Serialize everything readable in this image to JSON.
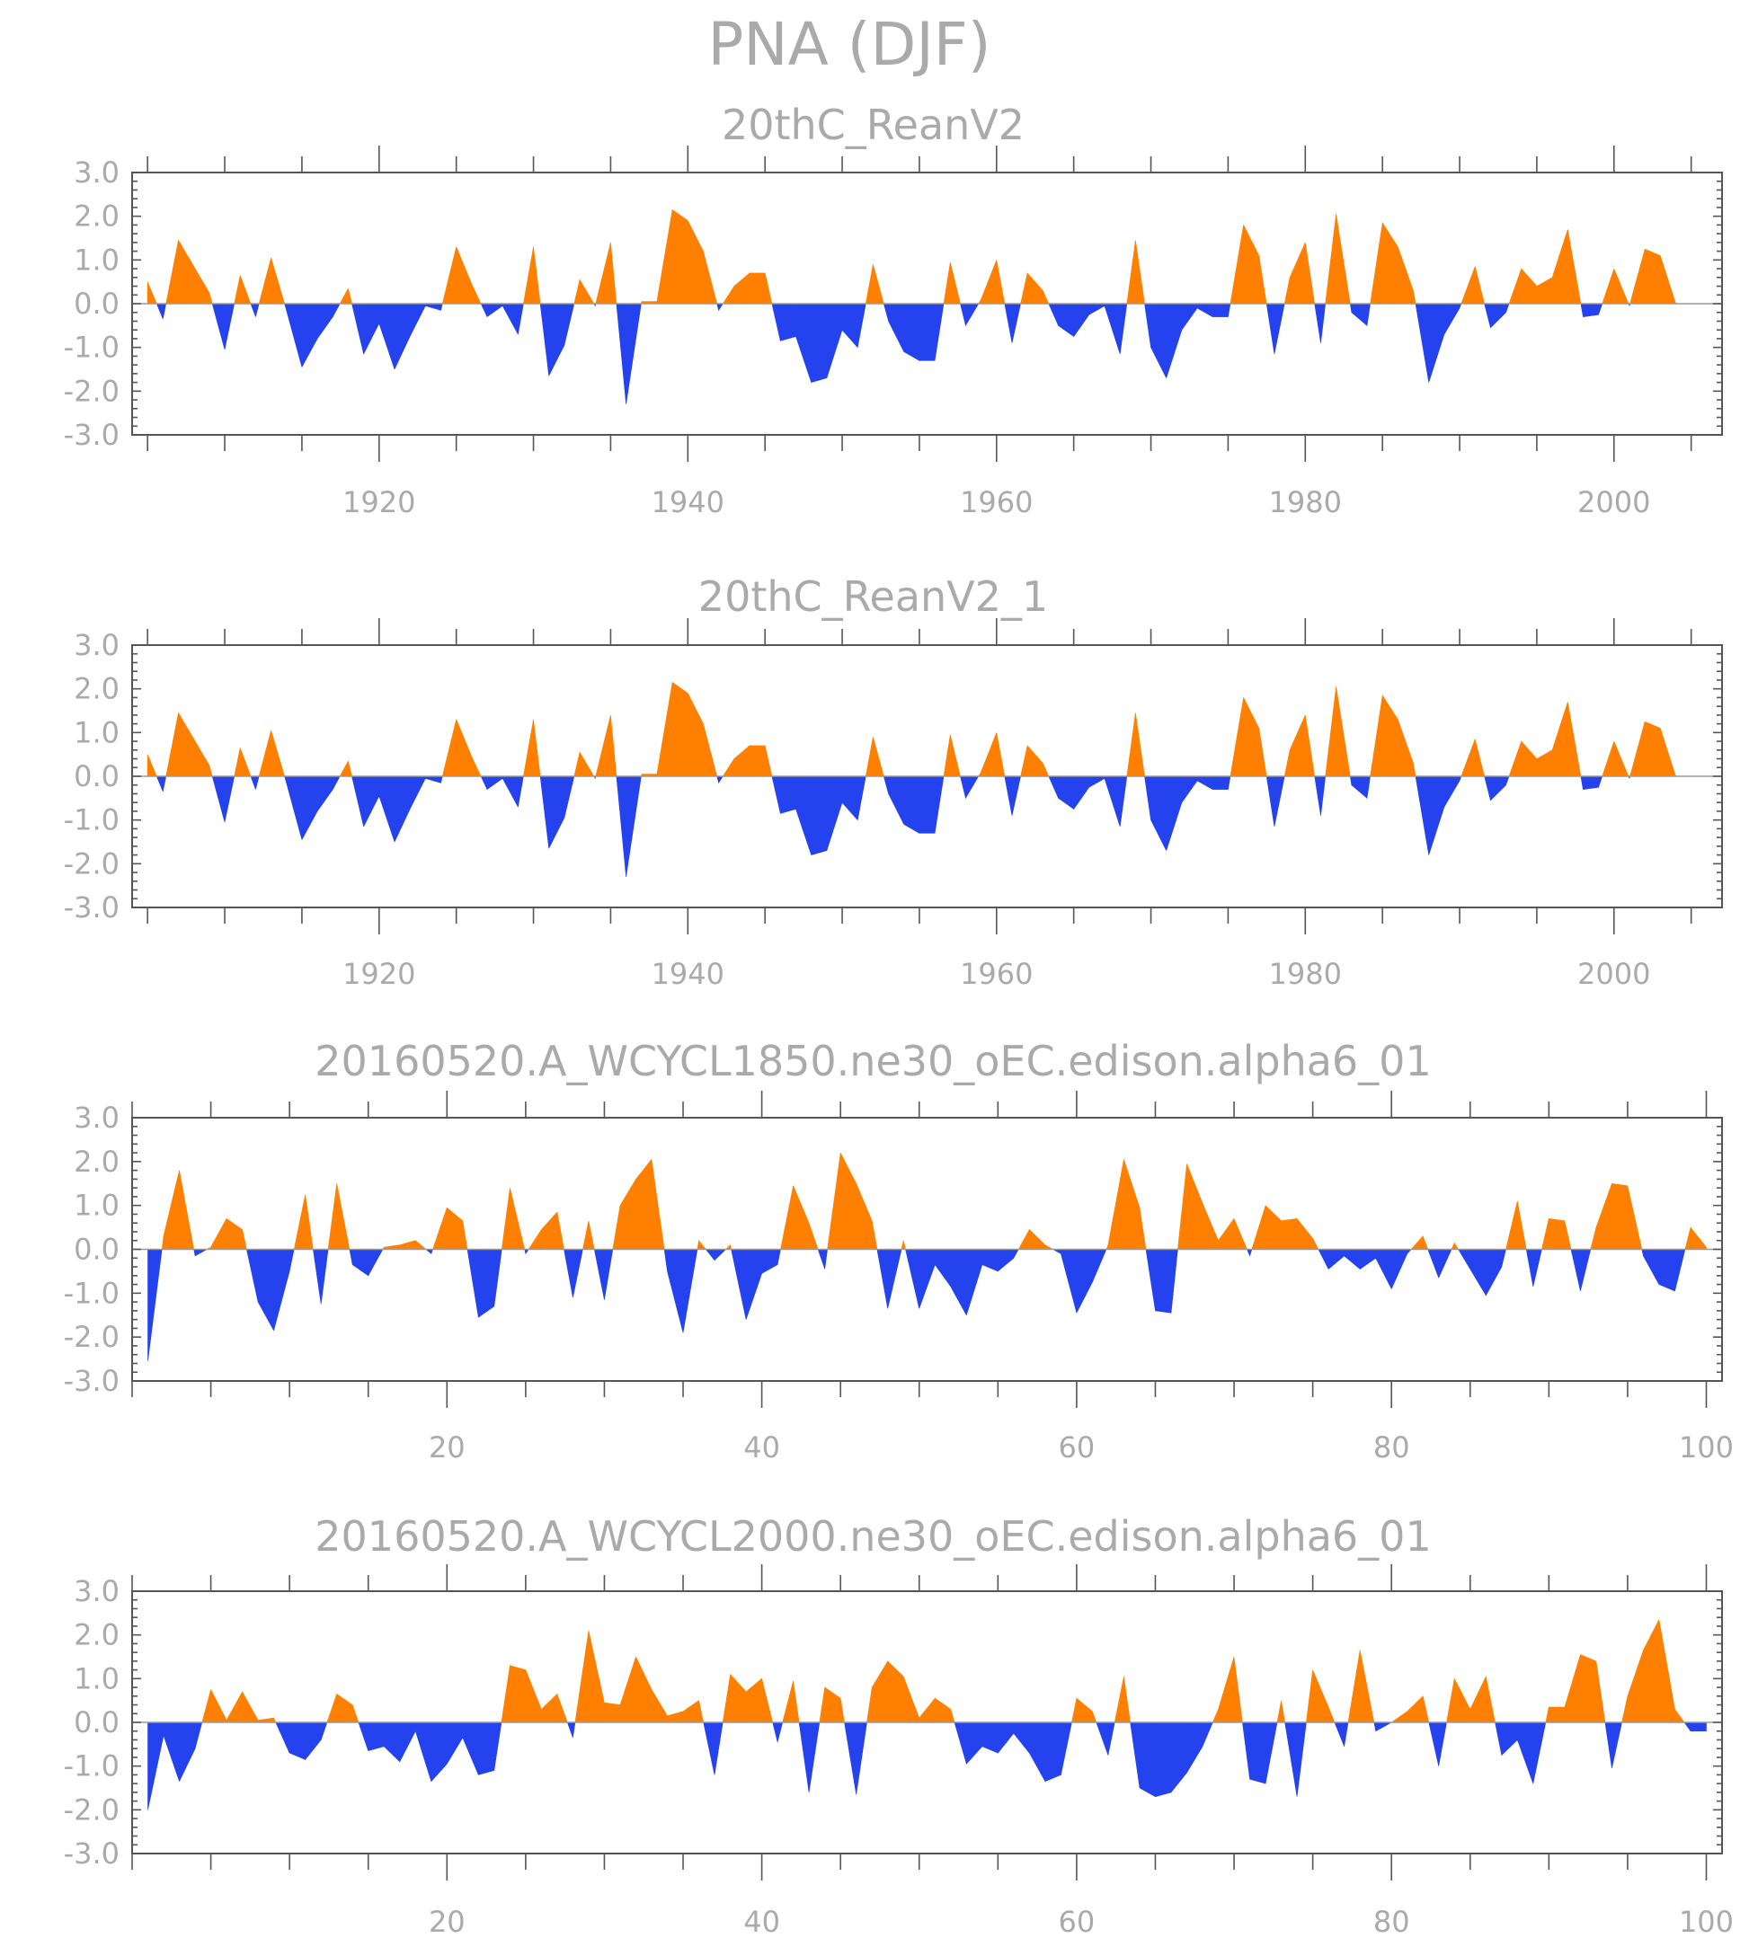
{
  "figure": {
    "title": "PNA (DJF)"
  },
  "colors": {
    "positive": "#ff8000",
    "negative": "#2442ee",
    "text": "#aaaaaa",
    "axis": "#555555"
  },
  "chart_data": [
    {
      "type": "area",
      "title": "20thC_ReanV2",
      "xlabel": "",
      "ylabel": "",
      "xlim": [
        1904,
        2007
      ],
      "ylim": [
        -3.0,
        3.0
      ],
      "xticks": [
        1920,
        1940,
        1960,
        1980,
        2000
      ],
      "xtick_labels": [
        "1920",
        "1940",
        "1960",
        "1980",
        "2000"
      ],
      "yticks": [
        3.0,
        2.0,
        1.0,
        0.0,
        -1.0,
        -2.0,
        -3.0
      ],
      "ytick_labels": [
        "3.0",
        "2.0",
        "1.0",
        "0.0",
        "-1.0",
        "-2.0",
        "-3.0"
      ],
      "x_start": 1905,
      "values": [
        0.5,
        -0.35,
        1.45,
        0.85,
        0.25,
        -1.05,
        0.65,
        -0.3,
        1.05,
        -0.15,
        -1.45,
        -0.8,
        -0.3,
        0.35,
        -1.15,
        -0.45,
        -1.5,
        -0.75,
        -0.05,
        -0.15,
        1.3,
        0.45,
        -0.3,
        -0.05,
        -0.7,
        1.3,
        -1.65,
        -0.95,
        0.55,
        -0.05,
        1.4,
        -2.3,
        0.05,
        0.05,
        2.15,
        1.9,
        1.2,
        -0.15,
        0.4,
        0.7,
        0.7,
        -0.85,
        -0.75,
        -1.8,
        -1.7,
        -0.6,
        -1.0,
        0.9,
        -0.4,
        -1.1,
        -1.3,
        -1.3,
        0.95,
        -0.5,
        0.1,
        1.0,
        -0.9,
        0.7,
        0.3,
        -0.5,
        -0.75,
        -0.25,
        -0.05,
        -1.15,
        1.45,
        -1.0,
        -1.7,
        -0.6,
        -0.1,
        -0.3,
        -0.3,
        1.8,
        1.1,
        -1.15,
        0.6,
        1.4,
        -0.9,
        2.05,
        -0.2,
        -0.5,
        1.85,
        1.3,
        0.3,
        -1.8,
        -0.7,
        -0.1,
        0.85,
        -0.55,
        -0.2,
        0.8,
        0.4,
        0.6,
        1.7,
        -0.3,
        -0.25,
        0.8,
        -0.05,
        1.25,
        1.1,
        0.0
      ]
    },
    {
      "type": "area",
      "title": "20thC_ReanV2_1",
      "xlabel": "",
      "ylabel": "",
      "xlim": [
        1904,
        2007
      ],
      "ylim": [
        -3.0,
        3.0
      ],
      "xticks": [
        1920,
        1940,
        1960,
        1980,
        2000
      ],
      "xtick_labels": [
        "1920",
        "1940",
        "1960",
        "1980",
        "2000"
      ],
      "yticks": [
        3.0,
        2.0,
        1.0,
        0.0,
        -1.0,
        -2.0,
        -3.0
      ],
      "ytick_labels": [
        "3.0",
        "2.0",
        "1.0",
        "0.0",
        "-1.0",
        "-2.0",
        "-3.0"
      ],
      "x_start": 1905,
      "values": [
        0.5,
        -0.35,
        1.45,
        0.85,
        0.25,
        -1.05,
        0.65,
        -0.3,
        1.05,
        -0.15,
        -1.45,
        -0.8,
        -0.3,
        0.35,
        -1.15,
        -0.45,
        -1.5,
        -0.75,
        -0.05,
        -0.15,
        1.3,
        0.45,
        -0.3,
        -0.05,
        -0.7,
        1.3,
        -1.65,
        -0.95,
        0.55,
        -0.05,
        1.4,
        -2.3,
        0.05,
        0.05,
        2.15,
        1.9,
        1.2,
        -0.15,
        0.4,
        0.7,
        0.7,
        -0.85,
        -0.75,
        -1.8,
        -1.7,
        -0.6,
        -1.0,
        0.9,
        -0.4,
        -1.1,
        -1.3,
        -1.3,
        0.95,
        -0.5,
        0.1,
        1.0,
        -0.9,
        0.7,
        0.3,
        -0.5,
        -0.75,
        -0.25,
        -0.05,
        -1.15,
        1.45,
        -1.0,
        -1.7,
        -0.6,
        -0.1,
        -0.3,
        -0.3,
        1.8,
        1.1,
        -1.15,
        0.6,
        1.4,
        -0.9,
        2.05,
        -0.2,
        -0.5,
        1.85,
        1.3,
        0.3,
        -1.8,
        -0.7,
        -0.1,
        0.85,
        -0.55,
        -0.2,
        0.8,
        0.4,
        0.6,
        1.7,
        -0.3,
        -0.25,
        0.8,
        -0.05,
        1.25,
        1.1,
        0.0
      ]
    },
    {
      "type": "area",
      "title": "20160520.A_WCYCL1850.ne30_oEC.edison.alpha6_01",
      "xlabel": "",
      "ylabel": "",
      "xlim": [
        0,
        101
      ],
      "ylim": [
        -3.0,
        3.0
      ],
      "xticks": [
        20,
        40,
        60,
        80,
        100
      ],
      "xtick_labels": [
        "20",
        "40",
        "60",
        "80",
        "100"
      ],
      "yticks": [
        3.0,
        2.0,
        1.0,
        0.0,
        -1.0,
        -2.0,
        -3.0
      ],
      "ytick_labels": [
        "3.0",
        "2.0",
        "1.0",
        "0.0",
        "-1.0",
        "-2.0",
        "-3.0"
      ],
      "x_start": 1,
      "values": [
        -2.55,
        0.3,
        1.8,
        -0.15,
        0.05,
        0.7,
        0.45,
        -1.2,
        -1.85,
        -0.5,
        1.25,
        -1.25,
        1.5,
        -0.35,
        -0.6,
        0.05,
        0.1,
        0.2,
        -0.1,
        0.95,
        0.65,
        -1.55,
        -1.3,
        1.4,
        -0.1,
        0.45,
        0.85,
        -1.1,
        0.65,
        -1.15,
        1.0,
        1.6,
        2.05,
        -0.5,
        -1.9,
        0.2,
        -0.25,
        0.1,
        -1.6,
        -0.55,
        -0.35,
        1.45,
        0.6,
        -0.45,
        2.2,
        1.5,
        0.65,
        -1.35,
        0.2,
        -1.35,
        -0.35,
        -0.85,
        -1.5,
        -0.35,
        -0.5,
        -0.2,
        0.45,
        0.1,
        -0.1,
        -1.45,
        -0.75,
        0.1,
        2.05,
        0.95,
        -1.4,
        -1.45,
        1.95,
        1.05,
        0.2,
        0.7,
        -0.15,
        1.0,
        0.65,
        0.7,
        0.25,
        -0.45,
        -0.15,
        -0.45,
        -0.2,
        -0.9,
        -0.1,
        0.3,
        -0.65,
        0.15,
        -0.45,
        -1.05,
        -0.4,
        1.1,
        -0.85,
        0.7,
        0.65,
        -0.95,
        0.5,
        1.5,
        1.45,
        -0.15,
        -0.8,
        -0.95,
        0.5,
        0.05
      ]
    },
    {
      "type": "area",
      "title": "20160520.A_WCYCL2000.ne30_oEC.edison.alpha6_01",
      "xlabel": "",
      "ylabel": "",
      "xlim": [
        0,
        101
      ],
      "ylim": [
        -3.0,
        3.0
      ],
      "xticks": [
        20,
        40,
        60,
        80,
        100
      ],
      "xtick_labels": [
        "20",
        "40",
        "60",
        "80",
        "100"
      ],
      "yticks": [
        3.0,
        2.0,
        1.0,
        0.0,
        -1.0,
        -2.0,
        -3.0
      ],
      "ytick_labels": [
        "3.0",
        "2.0",
        "1.0",
        "0.0",
        "-1.0",
        "-2.0",
        "-3.0"
      ],
      "x_start": 1,
      "values": [
        -2.0,
        -0.3,
        -1.35,
        -0.6,
        0.75,
        0.05,
        0.7,
        0.05,
        0.1,
        -0.7,
        -0.85,
        -0.4,
        0.65,
        0.4,
        -0.65,
        -0.55,
        -0.9,
        -0.2,
        -1.35,
        -0.95,
        -0.35,
        -1.2,
        -1.1,
        1.3,
        1.2,
        0.3,
        0.65,
        -0.35,
        2.1,
        0.45,
        0.4,
        1.5,
        0.75,
        0.15,
        0.25,
        0.5,
        -1.2,
        1.1,
        0.7,
        1.0,
        -0.45,
        0.95,
        -1.6,
        0.8,
        0.55,
        -1.65,
        0.8,
        1.4,
        1.05,
        0.1,
        0.55,
        0.3,
        -0.95,
        -0.55,
        -0.7,
        -0.25,
        -0.7,
        -1.35,
        -1.2,
        0.55,
        0.25,
        -0.75,
        1.05,
        -1.5,
        -1.7,
        -1.6,
        -1.15,
        -0.55,
        0.3,
        1.5,
        -1.3,
        -1.4,
        0.5,
        -1.7,
        1.2,
        0.35,
        -0.55,
        1.65,
        -0.2,
        0.0,
        0.25,
        0.6,
        -1.0,
        1.0,
        0.3,
        1.05,
        -0.75,
        -0.4,
        -1.4,
        0.35,
        0.35,
        1.55,
        1.4,
        -1.05,
        0.6,
        1.65,
        2.35,
        0.3,
        -0.2,
        -0.2
      ]
    }
  ]
}
